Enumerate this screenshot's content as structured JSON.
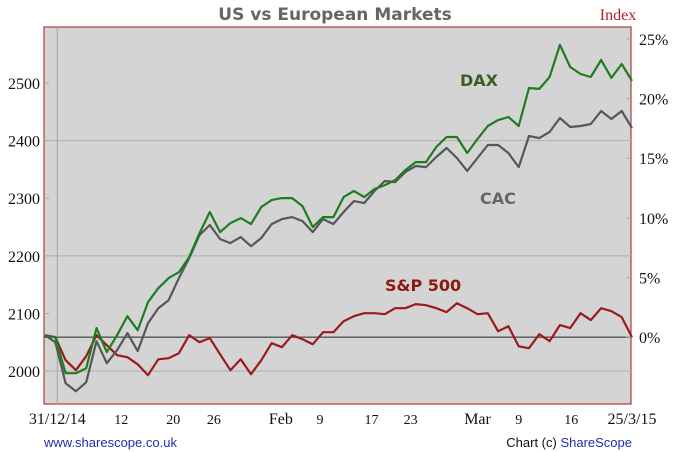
{
  "chart_data": {
    "type": "line",
    "title": "US vs European Markets",
    "left_axis": {
      "label": "Index",
      "ticks": [
        2000,
        2100,
        2200,
        2300,
        2400,
        2500
      ],
      "ylim": [
        1943,
        2597
      ],
      "gridlines": [
        2000,
        2200,
        2400
      ]
    },
    "right_axis": {
      "ticks": [
        "0%",
        "5%",
        "10%",
        "15%",
        "20%",
        "25%"
      ],
      "tick_values": [
        0,
        5,
        10,
        15,
        20,
        25
      ],
      "ylim": [
        -5.6,
        26.0
      ],
      "unit": "%"
    },
    "x_axis": {
      "xlim": [
        0,
        57
      ],
      "ticks": [
        {
          "label": "31/12/14",
          "x": 1.2,
          "big": true
        },
        {
          "label": "12",
          "x": 7.4
        },
        {
          "label": "20",
          "x": 12.45
        },
        {
          "label": "26",
          "x": 16.4
        },
        {
          "label": "Feb",
          "x": 22.9,
          "big": true
        },
        {
          "label": "9",
          "x": 26.7
        },
        {
          "label": "17",
          "x": 31.7
        },
        {
          "label": "23",
          "x": 35.5
        },
        {
          "label": "Mar",
          "x": 42.0,
          "big": true
        },
        {
          "label": "9",
          "x": 46.0
        },
        {
          "label": "16",
          "x": 51.1
        },
        {
          "label": "25/3/15",
          "x": 57.0,
          "big": true
        }
      ],
      "gridline_x": 1.2
    },
    "series": [
      {
        "name": "DAX",
        "color": "#1e7d1e",
        "label_color": "#3d5c26",
        "values": [
          0.17,
          0,
          -3.02,
          -3.02,
          -2.6,
          0.76,
          -1.26,
          0.17,
          1.76,
          0.59,
          2.94,
          4.11,
          4.95,
          5.45,
          6.71,
          8.72,
          10.49,
          8.81,
          9.56,
          9.98,
          9.48,
          10.91,
          11.49,
          11.66,
          11.66,
          10.99,
          9.23,
          10.07,
          10.07,
          11.74,
          12.25,
          11.74,
          12.42,
          12.75,
          13.17,
          14.01,
          14.68,
          14.68,
          15.94,
          16.78,
          16.78,
          15.44,
          16.61,
          17.7,
          18.2,
          18.46,
          17.7,
          20.89,
          20.81,
          21.81,
          24.5,
          22.65,
          22.06,
          21.81,
          23.24,
          21.73,
          22.9,
          21.48
        ]
      },
      {
        "name": "CAC",
        "color": "#575757",
        "label_color": "#666666",
        "values": [
          0.17,
          -0.42,
          -3.86,
          -4.53,
          -3.78,
          -0.34,
          -2.18,
          -1.09,
          0.34,
          -1.17,
          1.17,
          2.43,
          3.1,
          4.95,
          6.63,
          8.56,
          9.4,
          8.22,
          7.89,
          8.39,
          7.63,
          8.31,
          9.48,
          9.9,
          10.07,
          9.73,
          8.81,
          9.9,
          9.48,
          10.49,
          11.41,
          11.24,
          12.25,
          13.09,
          13.0,
          13.84,
          14.35,
          14.26,
          15.1,
          15.86,
          15.02,
          13.93,
          15.02,
          16.11,
          16.11,
          15.44,
          14.26,
          16.86,
          16.69,
          17.2,
          18.37,
          17.62,
          17.7,
          17.87,
          18.96,
          18.29,
          18.96,
          17.53
        ]
      },
      {
        "name": "S&P 500",
        "color": "#9b1b1b",
        "label_color": "#8b1a10",
        "values": [
          0.17,
          0,
          -1.93,
          -2.77,
          -1.59,
          0.17,
          -0.67,
          -1.51,
          -1.68,
          -2.27,
          -3.19,
          -1.85,
          -1.76,
          -1.34,
          0.17,
          -0.42,
          -0.08,
          -1.43,
          -2.77,
          -1.85,
          -3.1,
          -1.93,
          -0.5,
          -0.84,
          0.17,
          -0.17,
          -0.59,
          0.42,
          0.42,
          1.34,
          1.76,
          2.01,
          2.01,
          1.93,
          2.43,
          2.43,
          2.77,
          2.68,
          2.43,
          2.1,
          2.85,
          2.43,
          1.93,
          2.01,
          0.5,
          0.92,
          -0.76,
          -0.92,
          0.25,
          -0.34,
          1.01,
          0.76,
          2.01,
          1.43,
          2.43,
          2.18,
          1.68,
          0
        ]
      }
    ],
    "grid": true,
    "legend": "inline labels"
  },
  "footer": {
    "website": "www.sharescope.co.uk",
    "credit_prefix": "Chart (c) ",
    "credit_brand": "ShareScope"
  },
  "colors": {
    "plot_bg": "#d4d4d4",
    "border": "#b03a3a",
    "link": "#1a2fb0"
  }
}
